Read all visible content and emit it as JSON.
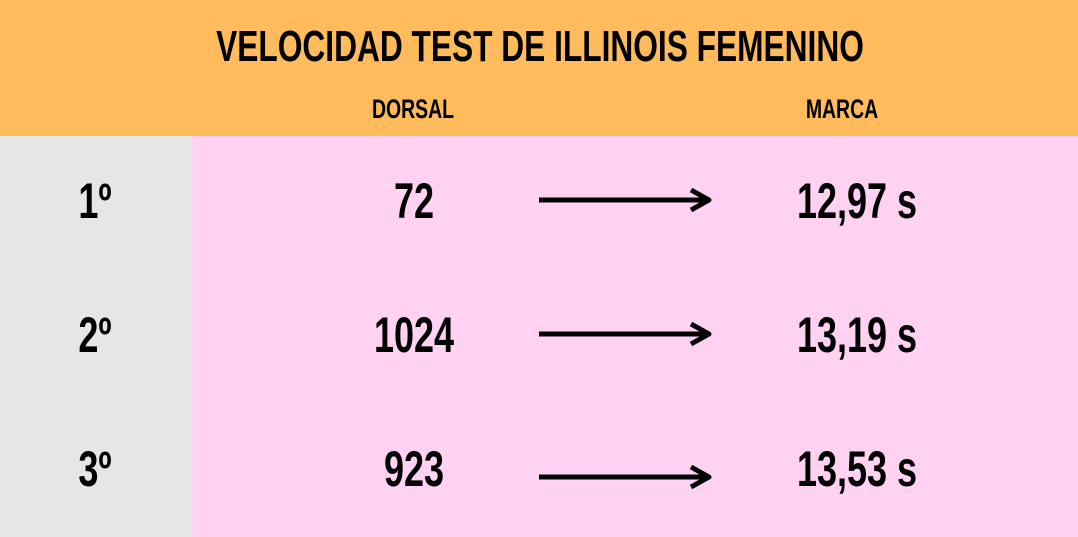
{
  "title": "VELOCIDAD TEST DE ILLINOIS FEMENINO",
  "columns": {
    "dorsal": "DORSAL",
    "marca": "MARCA"
  },
  "rows": [
    {
      "place": "1º",
      "dorsal": "72",
      "marca": "12,97 s"
    },
    {
      "place": "2º",
      "dorsal": "1024",
      "marca": "13,19 s"
    },
    {
      "place": "3º",
      "dorsal": "923",
      "marca": "13,53 s"
    }
  ],
  "colors": {
    "header": "#FFBB5C",
    "body": "#FFD2F2",
    "place_column": "#E6E6E8"
  }
}
